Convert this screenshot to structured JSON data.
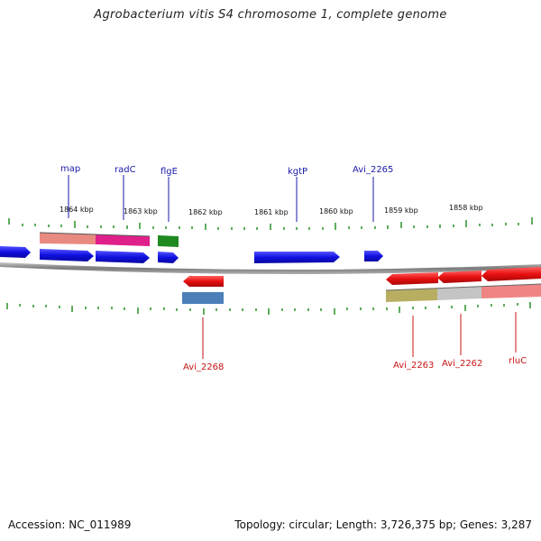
{
  "title": "Agrobacterium vitis S4 chromosome 1, complete genome",
  "footer": {
    "accession": "Accession: NC_011989",
    "summary": "Topology: circular; Length: 3,726,375 bp; Genes: 3,287"
  },
  "scale_labels": [
    "1864 kbp",
    "1863 kbp",
    "1862 kbp",
    "1861 kbp",
    "1860 kbp",
    "1859 kbp",
    "1858 kbp"
  ],
  "forward_gene_labels": [
    "map",
    "radC",
    "flgE",
    "kgtP",
    "Avi_2265"
  ],
  "reverse_gene_labels": [
    "Avi_2268",
    "Avi_2263",
    "Avi_2262",
    "rluC"
  ],
  "colors": {
    "forward_cds": "#1010e0",
    "reverse_cds": "#e81010",
    "backbone": "#8a8a8a",
    "ticks": "#1a8a1a",
    "forward_label": "#1a1aa8",
    "reverse_label": "#c81414",
    "feature_salmon": "#e88a80",
    "feature_magenta": "#e0208a",
    "feature_green": "#1f8a1f",
    "feature_steelblue": "#4a7fb8",
    "feature_olive": "#b8ae62",
    "feature_grey": "#c4c4c4",
    "feature_pink": "#ef8484"
  }
}
